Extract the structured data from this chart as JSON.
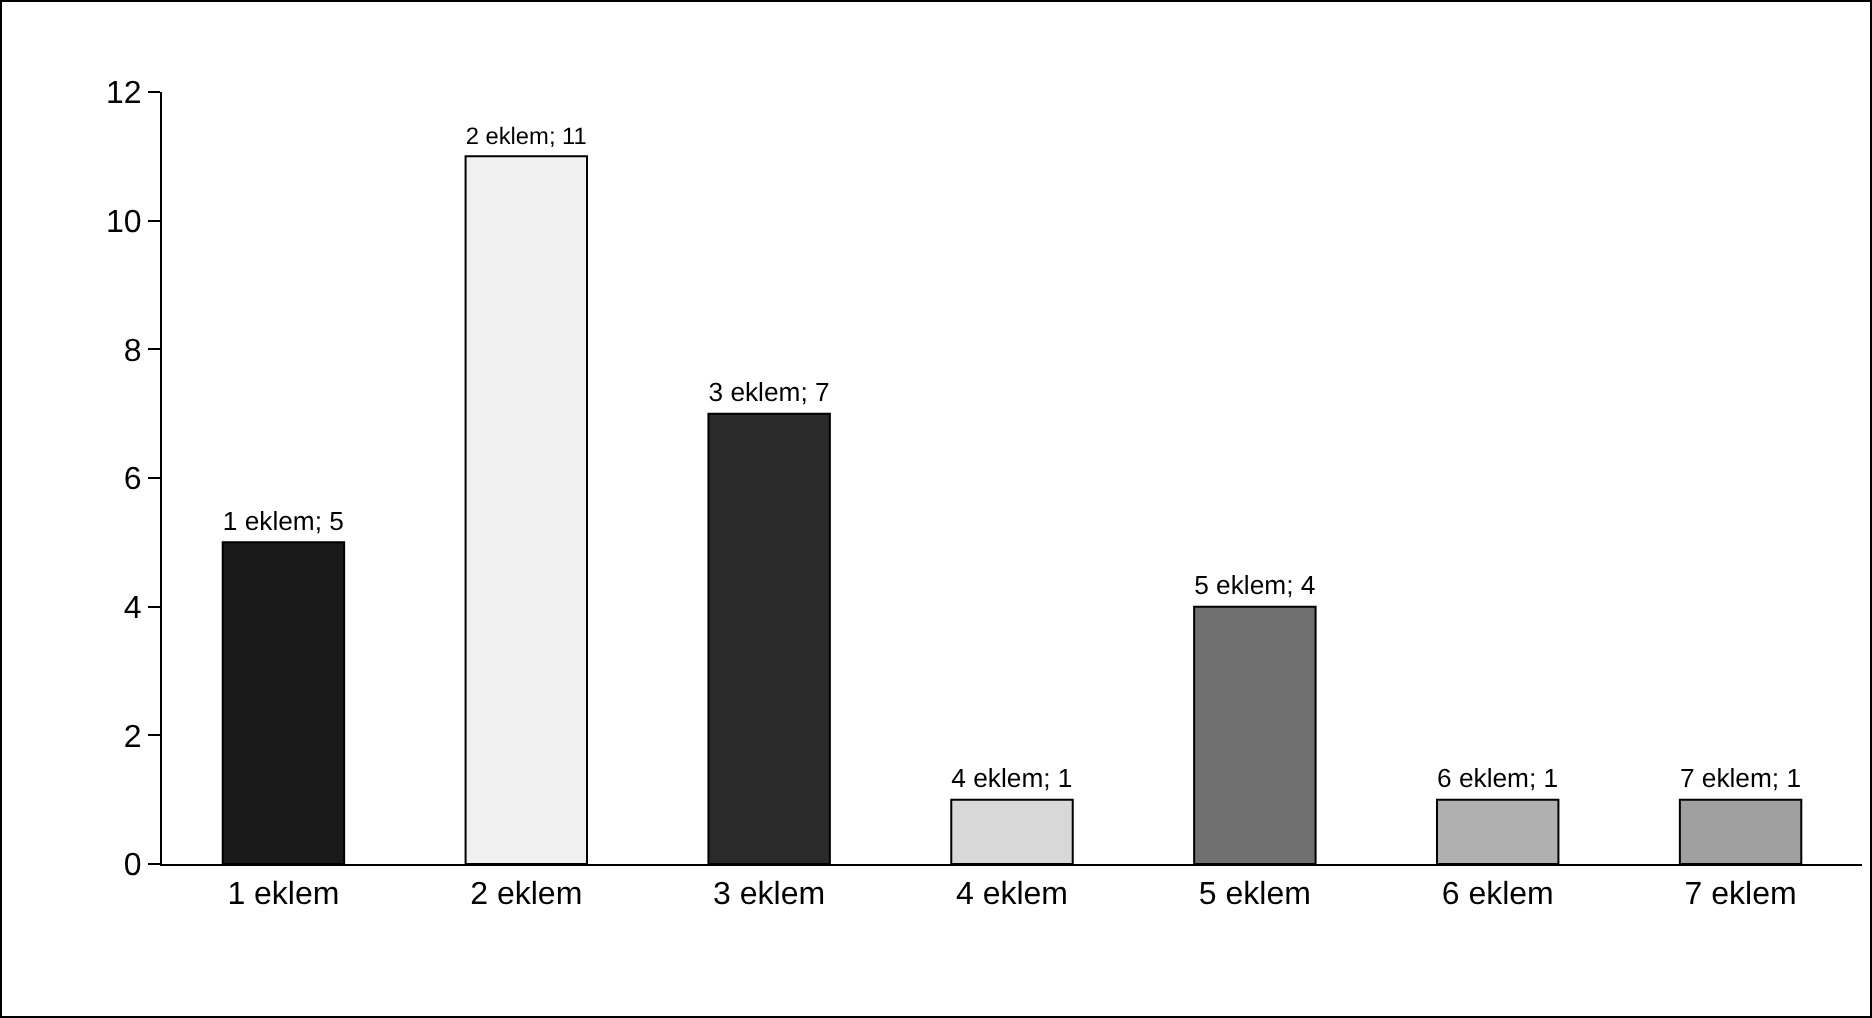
{
  "chart_data": {
    "type": "bar",
    "categories": [
      "1 eklem",
      "2 eklem",
      "3 eklem",
      "4 eklem",
      "5 eklem",
      "6 eklem",
      "7 eklem"
    ],
    "values": [
      5,
      11,
      7,
      1,
      4,
      1,
      1
    ],
    "colors": [
      "#1a1a1a",
      "#f0f0f0",
      "#2a2a2a",
      "#d8d8d8",
      "#707070",
      "#b0b0b0",
      "#a0a0a0"
    ],
    "value_labels": [
      "1 eklem; 5",
      "2 eklem; 11",
      "3 eklem; 7",
      "4 eklem; 1",
      "5 eklem; 4",
      "6 eklem; 1",
      "7 eklem; 1"
    ],
    "ylim": [
      0,
      12
    ],
    "yticks": [
      0,
      2,
      4,
      6,
      8,
      10,
      12
    ],
    "grid": false,
    "legend": false
  }
}
